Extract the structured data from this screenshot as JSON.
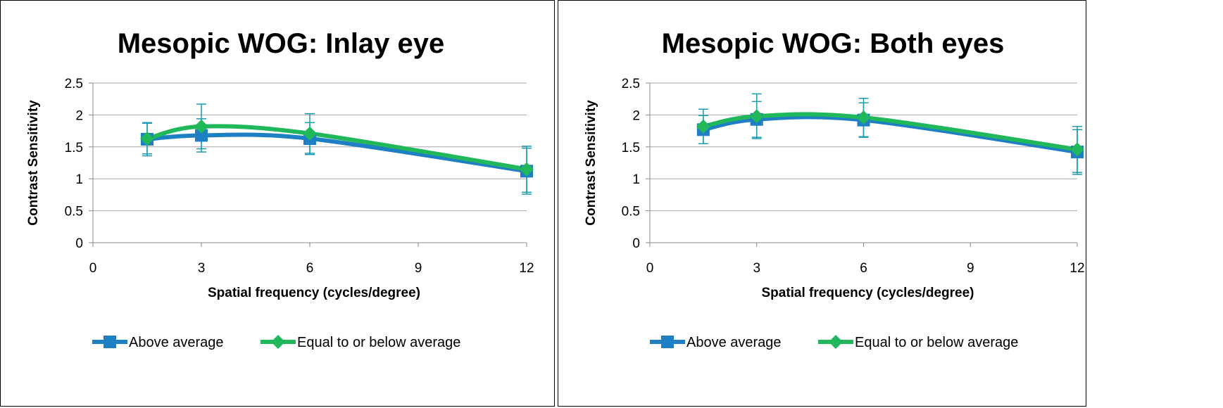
{
  "chart_data": [
    {
      "type": "line",
      "title": "Mesopic WOG: Inlay eye",
      "xlabel": "Spatial frequency (cycles/degree)",
      "ylabel": "Contrast Sensitivity",
      "xlim": [
        0,
        12
      ],
      "ylim": [
        0,
        2.5
      ],
      "xticks": [
        "0",
        "3",
        "6",
        "9",
        "12"
      ],
      "yticks": [
        "0",
        "0.5",
        "1",
        "1.5",
        "2",
        "2.5"
      ],
      "grid": true,
      "legend_position": "bottom",
      "x": [
        1.5,
        3,
        6,
        12
      ],
      "series": [
        {
          "name": "Above average",
          "color": "#1f7fc4",
          "marker": "square",
          "values": [
            1.62,
            1.68,
            1.63,
            1.12
          ],
          "error": [
            0.26,
            0.26,
            0.25,
            0.36
          ]
        },
        {
          "name": "Equal to or below average",
          "color": "#21b85c",
          "marker": "diamond",
          "values": [
            1.63,
            1.82,
            1.71,
            1.15
          ],
          "error": [
            0.24,
            0.35,
            0.31,
            0.36
          ]
        }
      ]
    },
    {
      "type": "line",
      "title": "Mesopic WOG: Both eyes",
      "xlabel": "Spatial frequency (cycles/degree)",
      "ylabel": "Contrast Sensitivity",
      "xlim": [
        0,
        12
      ],
      "ylim": [
        0,
        2.5
      ],
      "xticks": [
        "0",
        "3",
        "6",
        "9",
        "12"
      ],
      "yticks": [
        "0",
        "0.5",
        "1",
        "1.5",
        "2",
        "2.5"
      ],
      "grid": true,
      "legend_position": "bottom",
      "x": [
        1.5,
        3,
        6,
        12
      ],
      "series": [
        {
          "name": "Above average",
          "color": "#1f7fc4",
          "marker": "square",
          "values": [
            1.77,
            1.93,
            1.92,
            1.42
          ],
          "error": [
            0.22,
            0.28,
            0.27,
            0.35
          ]
        },
        {
          "name": "Equal to or below average",
          "color": "#21b85c",
          "marker": "diamond",
          "values": [
            1.82,
            1.98,
            1.96,
            1.46
          ],
          "error": [
            0.27,
            0.35,
            0.3,
            0.36
          ]
        }
      ]
    }
  ]
}
